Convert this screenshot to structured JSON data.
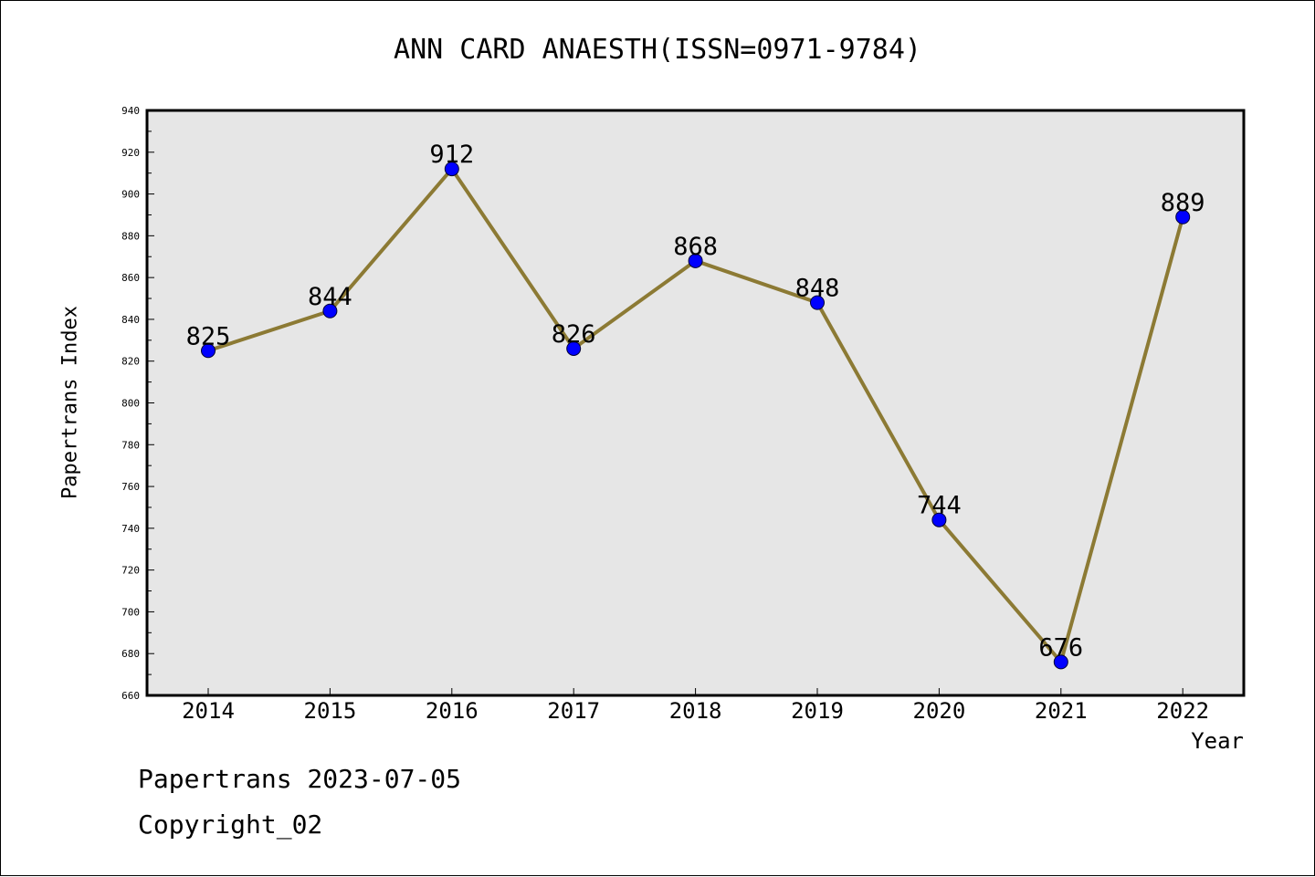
{
  "chart_data": {
    "type": "line",
    "title": "ANN CARD ANAESTH(ISSN=0971-9784)",
    "xlabel": "Year",
    "ylabel": "Papertrans Index",
    "categories": [
      "2014",
      "2015",
      "2016",
      "2017",
      "2018",
      "2019",
      "2020",
      "2021",
      "2022"
    ],
    "series": [
      {
        "values": [
          825,
          844,
          912,
          826,
          868,
          848,
          744,
          676,
          889
        ]
      }
    ],
    "ylim": [
      660,
      940
    ],
    "yticks": [
      660,
      680,
      700,
      720,
      740,
      760,
      780,
      800,
      820,
      840,
      860,
      880,
      900,
      920,
      940
    ],
    "grid": false,
    "colors": {
      "line": "#8c7a34",
      "marker": "#0000ff",
      "plot_background": "#e6e6e6",
      "frame": "#000000"
    }
  },
  "footer": {
    "line1": "Papertrans 2023-07-05",
    "line2": "Copyright_02"
  }
}
